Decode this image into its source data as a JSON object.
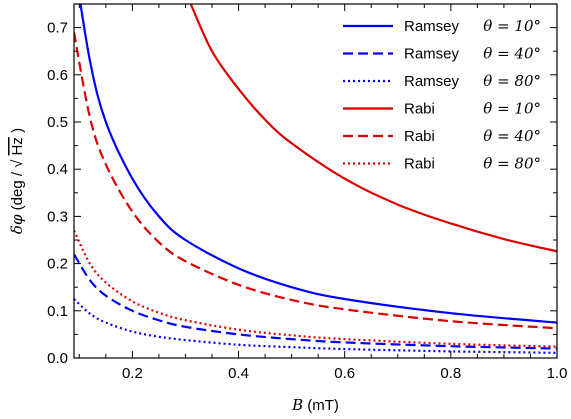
{
  "chart_data": {
    "type": "line",
    "xlabel": {
      "var": "B",
      "unit": "(mT)"
    },
    "ylabel": {
      "prefix": "δφ",
      "unit_open": "(deg / ",
      "sqrt": "√",
      "unit_sqrt": "Hz",
      "unit_close": ")"
    },
    "xlim": [
      0.09,
      1.0
    ],
    "ylim": [
      0.0,
      0.75
    ],
    "x_ticks": [
      "0.2",
      "0.4",
      "0.6",
      "0.8",
      "1.0"
    ],
    "y_ticks": [
      "0.0",
      "0.1",
      "0.2",
      "0.3",
      "0.4",
      "0.5",
      "0.6",
      "0.7"
    ],
    "grid": false,
    "legend_position": "top-right",
    "series": [
      {
        "name": "Ramsey",
        "theta": "θ = 10°",
        "color": "#0000ff",
        "style": "solid",
        "x": [
          0.09,
          0.12,
          0.15,
          0.2,
          0.25,
          0.3,
          0.4,
          0.5,
          0.6,
          0.8,
          1.0
        ],
        "y": [
          0.84,
          0.63,
          0.5,
          0.38,
          0.3,
          0.25,
          0.19,
          0.15,
          0.125,
          0.095,
          0.075
        ]
      },
      {
        "name": "Ramsey",
        "theta": "θ = 40°",
        "color": "#0000ff",
        "style": "dashed",
        "x": [
          0.09,
          0.12,
          0.15,
          0.2,
          0.25,
          0.3,
          0.4,
          0.5,
          0.6,
          0.8,
          1.0
        ],
        "y": [
          0.22,
          0.165,
          0.132,
          0.1,
          0.08,
          0.066,
          0.05,
          0.04,
          0.033,
          0.025,
          0.02
        ]
      },
      {
        "name": "Ramsey",
        "theta": "θ = 80°",
        "color": "#0000ff",
        "style": "dotted",
        "x": [
          0.09,
          0.12,
          0.15,
          0.2,
          0.25,
          0.3,
          0.4,
          0.5,
          0.6,
          0.8,
          1.0
        ],
        "y": [
          0.125,
          0.094,
          0.075,
          0.056,
          0.045,
          0.038,
          0.028,
          0.023,
          0.019,
          0.014,
          0.011
        ]
      },
      {
        "name": "Rabi",
        "theta": "θ = 10°",
        "color": "#dd0000",
        "style": "solid",
        "x": [
          0.31,
          0.35,
          0.4,
          0.45,
          0.5,
          0.6,
          0.7,
          0.8,
          0.9,
          1.0
        ],
        "y": [
          0.75,
          0.65,
          0.57,
          0.505,
          0.455,
          0.38,
          0.325,
          0.285,
          0.252,
          0.226
        ]
      },
      {
        "name": "Rabi",
        "theta": "θ = 40°",
        "color": "#dd0000",
        "style": "dashed",
        "x": [
          0.09,
          0.12,
          0.15,
          0.2,
          0.25,
          0.3,
          0.4,
          0.5,
          0.6,
          0.8,
          1.0
        ],
        "y": [
          0.69,
          0.51,
          0.41,
          0.31,
          0.245,
          0.205,
          0.155,
          0.123,
          0.103,
          0.078,
          0.063
        ]
      },
      {
        "name": "Rabi",
        "theta": "θ = 80°",
        "color": "#dd0000",
        "style": "dotted",
        "x": [
          0.09,
          0.12,
          0.15,
          0.2,
          0.25,
          0.3,
          0.4,
          0.5,
          0.6,
          0.8,
          1.0
        ],
        "y": [
          0.27,
          0.2,
          0.16,
          0.12,
          0.096,
          0.08,
          0.06,
          0.048,
          0.04,
          0.03,
          0.024
        ]
      }
    ]
  }
}
